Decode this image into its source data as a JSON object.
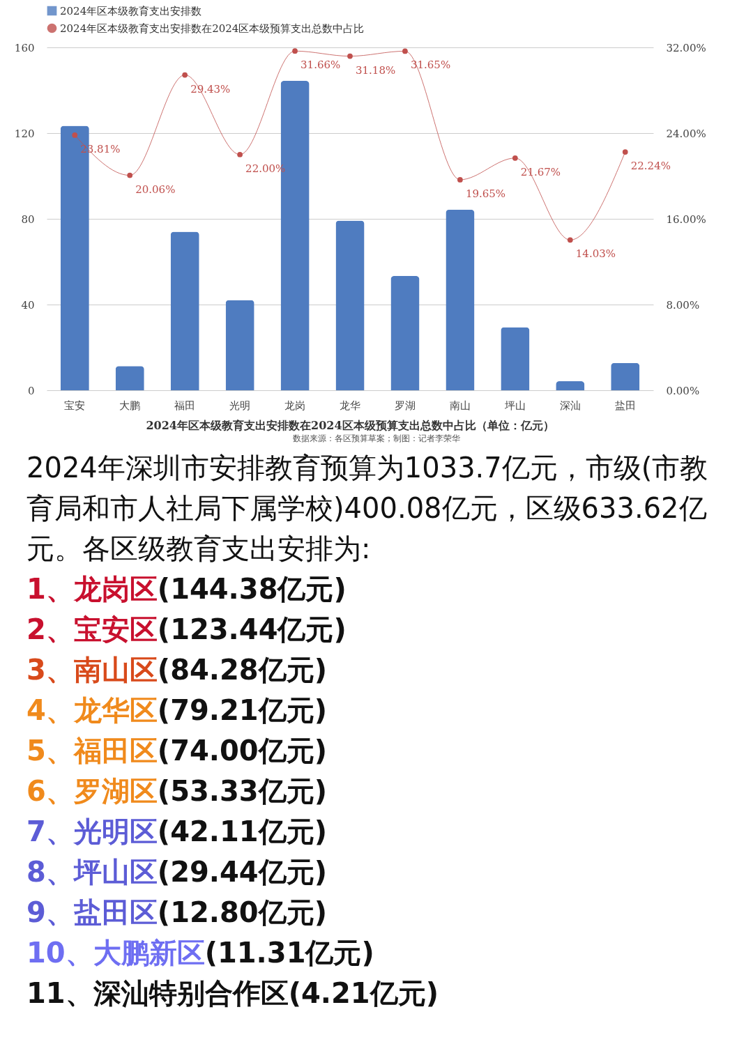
{
  "chart_data": {
    "type": "bar",
    "title": "2024年区本级教育支出安排数在2024区本级预算支出总数中占比（单位：亿元）",
    "categories": [
      "宝安",
      "大鹏",
      "福田",
      "光明",
      "龙岗",
      "龙华",
      "罗湖",
      "南山",
      "坪山",
      "深汕",
      "盐田"
    ],
    "series": [
      {
        "name": "2024年区本级教育支出安排数",
        "color": "#4f7cc0",
        "values": [
          123.44,
          11.31,
          74.0,
          42.11,
          144.38,
          79.21,
          53.33,
          84.28,
          29.44,
          4.21,
          12.8
        ]
      },
      {
        "name": "2024年区本级教育支出安排数在2024区本级预算支出总数中占比",
        "type": "line",
        "axis": "y2",
        "color": "#c0504d",
        "marker": "circle",
        "values": [
          23.81,
          20.06,
          29.43,
          22.0,
          31.66,
          31.18,
          31.65,
          19.65,
          21.67,
          14.03,
          22.24
        ],
        "value_labels": [
          "23.81%",
          "20.06%",
          "29.43%",
          "22.00%",
          "31.66%",
          "31.18%",
          "31.65%",
          "19.65%",
          "21.67%",
          "14.03%",
          "22.24%"
        ]
      }
    ],
    "ylim": [
      0,
      160
    ],
    "yticks": [
      0,
      40,
      80,
      120,
      160
    ],
    "y2lim": [
      0,
      32
    ],
    "y2ticks": [
      {
        "value": 0,
        "label": "0.00%"
      },
      {
        "value": 8,
        "label": "8.00%"
      },
      {
        "value": 16,
        "label": "16.00%"
      },
      {
        "value": 24,
        "label": "24.00%"
      },
      {
        "value": 32,
        "label": "32.00%"
      }
    ],
    "grid": "y",
    "legend": "top left",
    "annotations": [
      "数据来源：各区预算草案；制图：记者李荣华",
      "2024年深圳市安排教育预算为1033.7亿元，市级(市教育局和市人社局下属学校)400.08亿元，区级633.62亿元。各区级教育支出安排为:",
      "1、龙岗区(144.38亿元)",
      "2、宝安区(123.44亿元)",
      "3、南山区(84.28亿元)",
      "4、龙华区(79.21亿元)",
      "5、福田区(74.00亿元)",
      "6、罗湖区(53.33亿元)",
      "7、光明区(42.11亿元)",
      "8、坪山区(29.44亿元)",
      "9、盐田区(12.80亿元)",
      "10、大鹏新区(11.31亿元)",
      "11、深汕特别合作区(4.21亿元)"
    ]
  }
}
